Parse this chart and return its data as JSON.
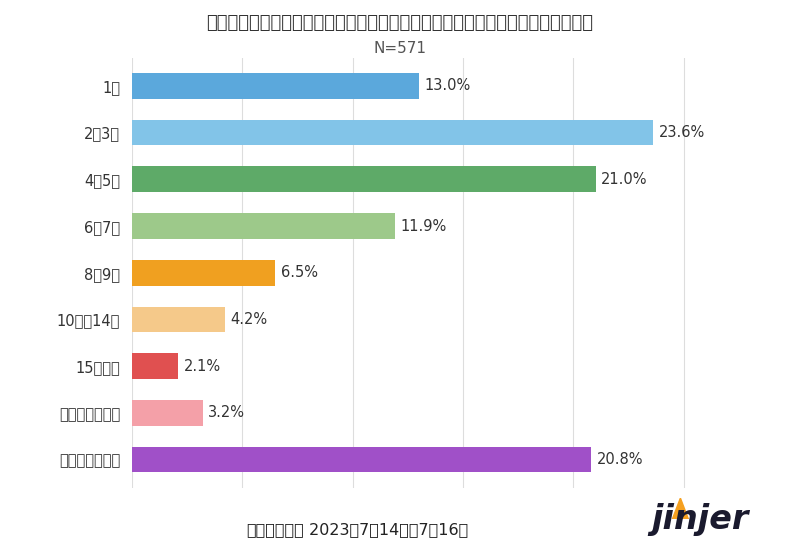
{
  "title": "あなたのお勤め先で現在使われている人事系システムの総数を教えてください。",
  "subtitle": "N=571",
  "categories": [
    "1個",
    "2～3個",
    "4～5個",
    "6～7個",
    "8～9個",
    "10個～14個",
    "15個以上",
    "導入していない",
    "把握していない"
  ],
  "values": [
    13.0,
    23.6,
    21.0,
    11.9,
    6.5,
    4.2,
    2.1,
    3.2,
    20.8
  ],
  "colors": [
    "#5BA8DC",
    "#82C4E8",
    "#5EAA68",
    "#9DC98A",
    "#F0A020",
    "#F5C98A",
    "#E05050",
    "#F4A0A8",
    "#A050C8"
  ],
  "xlim": [
    0,
    27
  ],
  "footer_bold": "【調査期間】",
  "footer_normal": " 2023年7月14日～7月16日",
  "background_color": "#FFFFFF",
  "bar_height": 0.55,
  "label_fontsize": 10.5,
  "title_fontsize": 13,
  "subtitle_fontsize": 11,
  "tick_fontsize": 10.5,
  "footer_fontsize": 11.5,
  "grid_color": "#DDDDDD"
}
